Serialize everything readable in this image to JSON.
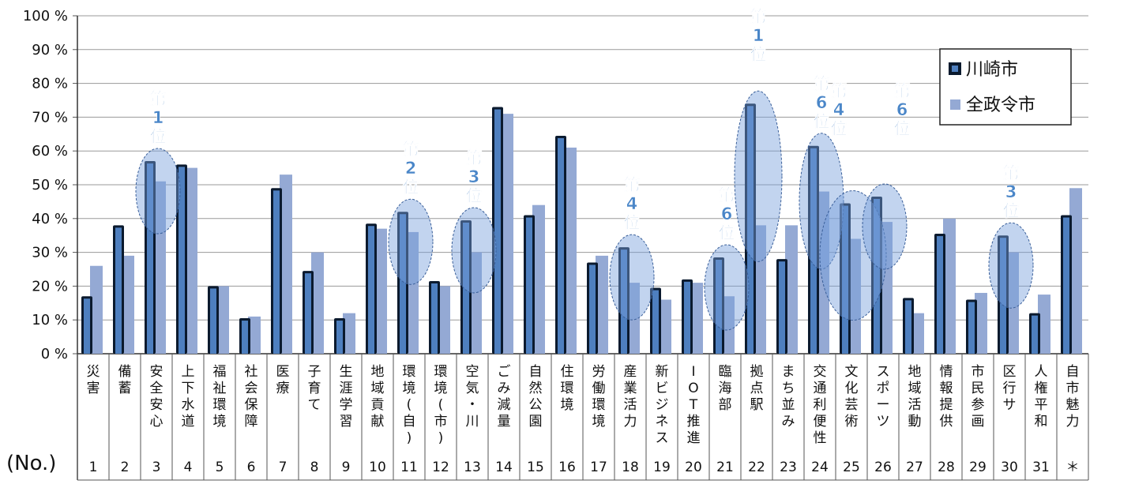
{
  "chart_data": {
    "type": "bar",
    "ylim": [
      0,
      100
    ],
    "yticks": [
      "0 %",
      "10 %",
      "20 %",
      "30 %",
      "40 %",
      "50 %",
      "60 %",
      "70 %",
      "80 %",
      "90 %",
      "100 %"
    ],
    "x_index_label": "(No.)",
    "categories": [
      "災害",
      "備蓄",
      "安全安心",
      "上下水道",
      "福祉環境",
      "社会保障",
      "医療",
      "子育て",
      "生涯学習",
      "地域貢献",
      "環境(自)",
      "環境(市)",
      "空気・川",
      "ごみ減量",
      "自然公園",
      "住環境",
      "労働環境",
      "産業活力",
      "新ビジネス",
      "IOT推進",
      "臨海部",
      "拠点駅",
      "まち並み",
      "交通利便性",
      "文化芸術",
      "スポーツ",
      "地域活動",
      "情報提供",
      "市民参画",
      "区行サ",
      "人権平和",
      "自市魅力"
    ],
    "numbers": [
      "1",
      "2",
      "3",
      "4",
      "5",
      "6",
      "7",
      "8",
      "9",
      "10",
      "11",
      "12",
      "13",
      "14",
      "15",
      "16",
      "17",
      "18",
      "19",
      "20",
      "21",
      "22",
      "23",
      "24",
      "25",
      "26",
      "27",
      "28",
      "29",
      "30",
      "31",
      "＊"
    ],
    "series": [
      {
        "name": "川崎市",
        "color": "#0b1a2e",
        "values": [
          17,
          38,
          57,
          56,
          20,
          10.5,
          49,
          24.5,
          10.5,
          38.5,
          42,
          21.5,
          39.5,
          73,
          41,
          64.5,
          27,
          31.5,
          19.5,
          22,
          28.5,
          74,
          28,
          61.5,
          44.5,
          46.5,
          16.5,
          35.5,
          16,
          35,
          12,
          41
        ]
      },
      {
        "name": "全政令市",
        "color": "#94a9d4",
        "values": [
          26,
          29,
          51,
          55,
          20,
          11,
          53,
          30,
          12,
          37,
          36,
          20,
          30,
          71,
          44,
          61,
          29,
          21,
          16,
          21,
          17,
          38,
          38,
          48,
          34,
          39,
          12,
          40,
          18,
          30,
          17.5,
          49
        ]
      }
    ],
    "annotations": [
      {
        "index": 2,
        "text": [
          "第",
          "1",
          "位"
        ]
      },
      {
        "index": 10,
        "text": [
          "第",
          "2",
          "位"
        ]
      },
      {
        "index": 12,
        "text": [
          "第",
          "3",
          "位"
        ]
      },
      {
        "index": 17,
        "text": [
          "第",
          "4",
          "位"
        ]
      },
      {
        "index": 20,
        "text": [
          "第",
          "6",
          "位"
        ]
      },
      {
        "index": 21,
        "text": [
          "第",
          "1",
          "位"
        ]
      },
      {
        "index": 23,
        "text": [
          "第",
          "6",
          "位"
        ]
      },
      {
        "index": 24,
        "text": [
          "第",
          "4",
          "位"
        ]
      },
      {
        "index": 25,
        "text": [
          "第",
          "6",
          "位"
        ]
      },
      {
        "index": 29,
        "text": [
          "第",
          "3",
          "位"
        ]
      }
    ],
    "grid": true,
    "legend_position": "top-right"
  }
}
